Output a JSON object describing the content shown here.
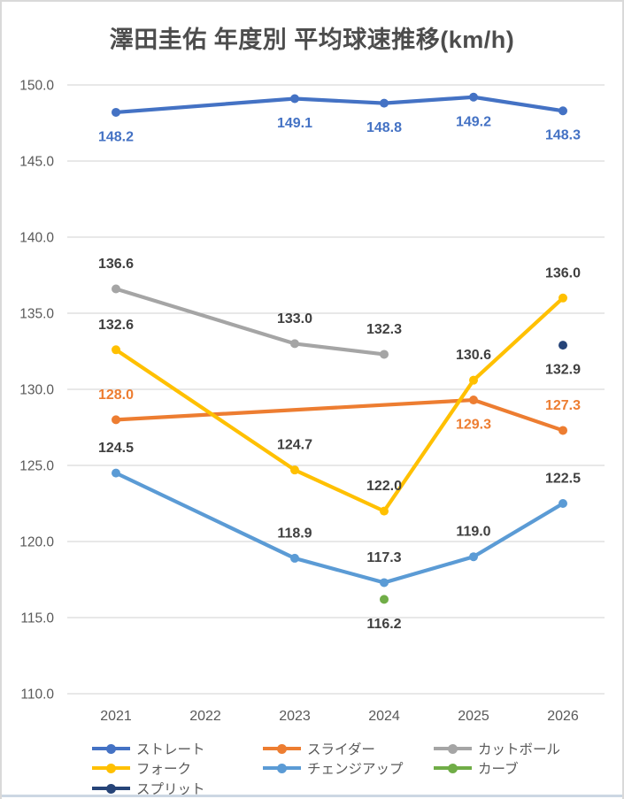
{
  "window": {
    "border_color": "#d9d9d9",
    "bottom_rule_color": "#ccd7e3"
  },
  "chart_data": {
    "type": "line",
    "title": "澤田圭佑 年度別 平均球速推移(km/h)",
    "title_color": "#4d4d4d",
    "x_tick_labels": [
      "2021",
      "2022",
      "2023",
      "2024",
      "2025",
      "2026"
    ],
    "x_values": [
      2021,
      2022,
      2023,
      2024,
      2025,
      2026
    ],
    "y_tick_labels": [
      "150.0",
      "145.0",
      "140.0",
      "135.0",
      "130.0",
      "125.0",
      "120.0",
      "115.0",
      "110.0"
    ],
    "ylim": [
      110.0,
      150.0
    ],
    "y_tick_step": 5.0,
    "grid": true,
    "gridline_color": "#d9d9d9",
    "axis_label_color": "#595959",
    "legend_position": "bottom",
    "series": [
      {
        "id": "straight",
        "name": "ストレート",
        "color": "#4472C4",
        "label_color": "#4472C4",
        "points": [
          {
            "x": 2021,
            "y": 148.2,
            "side": "below"
          },
          {
            "x": 2023,
            "y": 149.1,
            "side": "below"
          },
          {
            "x": 2024,
            "y": 148.8,
            "side": "below"
          },
          {
            "x": 2025,
            "y": 149.2,
            "side": "below"
          },
          {
            "x": 2026,
            "y": 148.3,
            "side": "below"
          }
        ]
      },
      {
        "id": "slider",
        "name": "スライダー",
        "color": "#ED7D31",
        "label_color": "#ED7D31",
        "points": [
          {
            "x": 2021,
            "y": 128.0,
            "side": "above"
          },
          {
            "x": 2025,
            "y": 129.3,
            "side": "below"
          },
          {
            "x": 2026,
            "y": 127.3,
            "side": "above"
          }
        ]
      },
      {
        "id": "cutter",
        "name": "カットボール",
        "color": "#A5A5A5",
        "label_color": "#404040",
        "points": [
          {
            "x": 2021,
            "y": 136.6,
            "side": "above"
          },
          {
            "x": 2023,
            "y": 133.0,
            "side": "above"
          },
          {
            "x": 2024,
            "y": 132.3,
            "side": "above"
          }
        ]
      },
      {
        "id": "fork",
        "name": "フォーク",
        "color": "#FFC000",
        "label_color": "#404040",
        "points": [
          {
            "x": 2021,
            "y": 132.6,
            "side": "above"
          },
          {
            "x": 2023,
            "y": 124.7,
            "side": "above"
          },
          {
            "x": 2024,
            "y": 122.0,
            "side": "above"
          },
          {
            "x": 2025,
            "y": 130.6,
            "side": "above"
          },
          {
            "x": 2026,
            "y": 136.0,
            "side": "above"
          }
        ]
      },
      {
        "id": "changeup",
        "name": "チェンジアップ",
        "color": "#5B9BD5",
        "label_color": "#404040",
        "points": [
          {
            "x": 2021,
            "y": 124.5,
            "side": "above"
          },
          {
            "x": 2023,
            "y": 118.9,
            "side": "above"
          },
          {
            "x": 2024,
            "y": 117.3,
            "side": "above"
          },
          {
            "x": 2025,
            "y": 119.0,
            "side": "above"
          },
          {
            "x": 2026,
            "y": 122.5,
            "side": "above"
          }
        ]
      },
      {
        "id": "curve",
        "name": "カーブ",
        "color": "#70AD47",
        "label_color": "#404040",
        "points": [
          {
            "x": 2024,
            "y": 116.2,
            "side": "below"
          }
        ]
      },
      {
        "id": "split",
        "name": "スプリット",
        "color": "#264478",
        "label_color": "#404040",
        "points": [
          {
            "x": 2026,
            "y": 132.9,
            "side": "below"
          }
        ]
      }
    ]
  }
}
